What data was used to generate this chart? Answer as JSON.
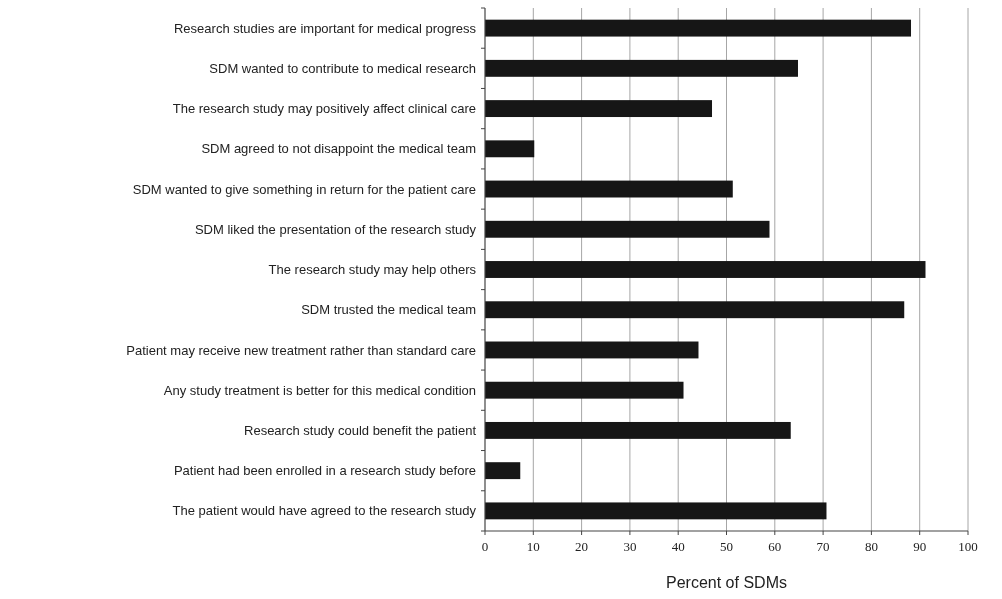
{
  "chart_data": {
    "type": "bar",
    "orientation": "horizontal",
    "xlabel": "Percent of SDMs",
    "categories": [
      "Research studies are important for medical progress",
      "SDM wanted to contribute to medical research",
      "The research study may positively affect clinical care",
      "SDM agreed to not disappoint the medical team",
      "SDM wanted to give something in return for the patient care",
      "SDM liked the presentation of the research study",
      "The research study may help others",
      "SDM trusted the medical team",
      "Patient may receive new treatment rather than standard care",
      "Any study treatment is better for this medical condition",
      "Research study could benefit the patient",
      "Patient had been enrolled in a research study before",
      "The patient would have agreed to the research study"
    ],
    "values": [
      88.2,
      64.8,
      47.0,
      10.2,
      51.3,
      58.9,
      91.2,
      86.8,
      44.2,
      41.1,
      63.3,
      7.3,
      70.7
    ],
    "color": "#161616",
    "xlim": [
      0,
      100
    ],
    "xticks": [
      0,
      10,
      20,
      30,
      40,
      50,
      60,
      70,
      80,
      90,
      100
    ],
    "grid": "x"
  }
}
